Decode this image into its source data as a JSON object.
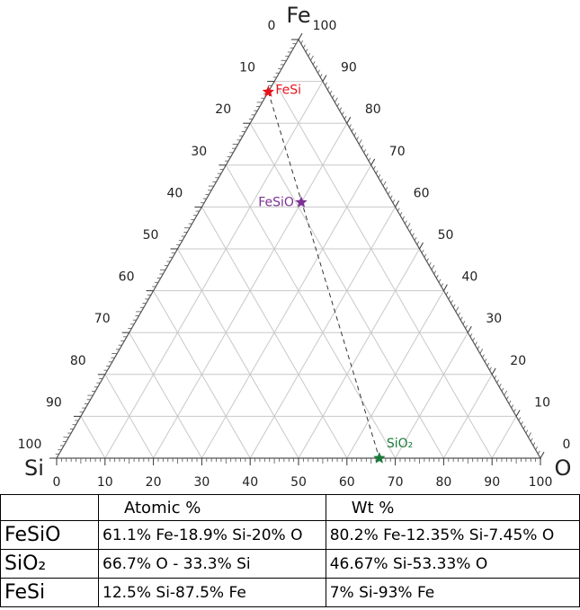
{
  "chart_data": {
    "type": "ternary",
    "vertices": {
      "top": "Fe",
      "left": "Si",
      "right": "O"
    },
    "fe_ticks": [
      0,
      10,
      20,
      30,
      40,
      50,
      60,
      70,
      80,
      90,
      100
    ],
    "si_ticks": [
      0,
      10,
      20,
      30,
      40,
      50,
      60,
      70,
      80,
      90,
      100
    ],
    "o_ticks": [
      0,
      10,
      20,
      30,
      40,
      50,
      60,
      70,
      80,
      90,
      100
    ],
    "grid": true,
    "series": [
      {
        "name": "FeSi",
        "color": "#e8141c",
        "values": [
          87.5,
          12.5,
          0
        ]
      },
      {
        "name": "FeSiO",
        "color": "#7b3294",
        "values": [
          61.1,
          18.9,
          20
        ]
      },
      {
        "name": "SiO₂",
        "color": "#1b7a3a",
        "values": [
          0,
          33.3,
          66.7
        ]
      }
    ]
  },
  "table": {
    "columns": [
      "Atomic %",
      "Wt %"
    ],
    "rows": [
      [
        "FeSiO",
        "61.1% Fe-18.9% Si-20% O",
        "80.2% Fe-12.35% Si-7.45% O"
      ],
      [
        "SiO₂",
        "66.7% O - 33.3% Si",
        "46.67% Si-53.33% O"
      ],
      [
        "FeSi",
        "12.5% Si-87.5% Fe",
        "7% Si-93% Fe"
      ]
    ]
  }
}
